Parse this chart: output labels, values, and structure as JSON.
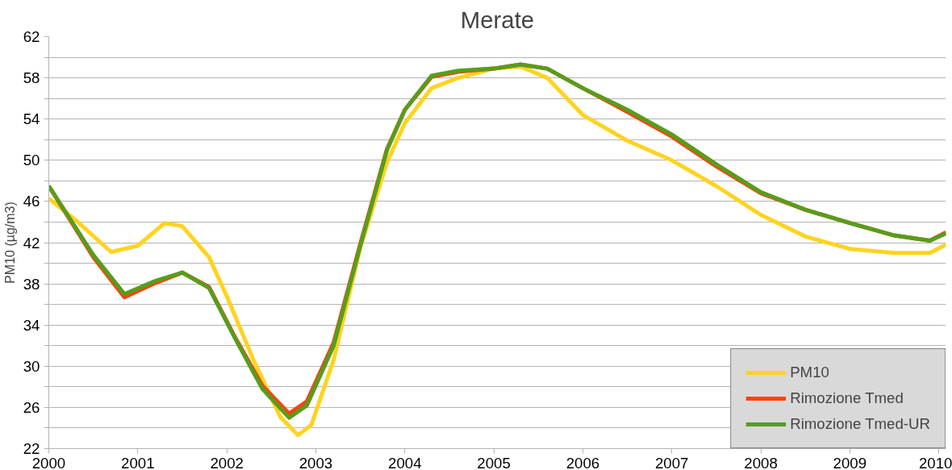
{
  "chart_data": {
    "type": "line",
    "title": "Merate",
    "ylabel": "PM10 (µg/m3)",
    "xlim": [
      2000,
      2010.08
    ],
    "xticks": [
      2000,
      2001,
      2002,
      2003,
      2004,
      2005,
      2006,
      2007,
      2008,
      2009,
      2010
    ],
    "ylim": [
      22,
      62
    ],
    "yticks": [
      22,
      {
        "value": 24,
        "label": null
      },
      26,
      {
        "value": 28,
        "label": null
      },
      30,
      {
        "value": 32,
        "label": null
      },
      34,
      {
        "value": 36,
        "label": null
      },
      38,
      {
        "value": 40,
        "label": null
      },
      42,
      {
        "value": 44,
        "label": null
      },
      46,
      {
        "value": 48,
        "label": null
      },
      50,
      {
        "value": 52,
        "label": null
      },
      54,
      {
        "value": 56,
        "label": null
      },
      58,
      {
        "value": 60,
        "label": null
      },
      62
    ],
    "grid": "y",
    "legend": "bottom right",
    "marker": "none",
    "line_style": "solid",
    "series": [
      {
        "name": "PM10",
        "color": "#ffd320",
        "x": [
          2000,
          2000.3,
          2000.7,
          2001,
          2001.3,
          2001.5,
          2001.8,
          2002,
          2002.3,
          2002.6,
          2002.8,
          2002.95,
          2003.2,
          2003.5,
          2003.8,
          2004,
          2004.3,
          2004.6,
          2005,
          2005.3,
          2005.6,
          2006,
          2006.5,
          2007,
          2007.5,
          2008,
          2008.5,
          2009,
          2009.5,
          2009.9,
          2010.08
        ],
        "values": [
          46.3,
          44.2,
          41.1,
          41.7,
          43.9,
          43.6,
          40.6,
          36.8,
          30.6,
          25.1,
          23.3,
          24.3,
          30.6,
          41.5,
          49.8,
          53.6,
          57,
          58,
          58.9,
          59.1,
          58,
          54.4,
          51.9,
          50,
          47.5,
          44.7,
          42.6,
          41.4,
          41,
          41,
          41.8
        ]
      },
      {
        "name": "Rimozione Tmed",
        "color": "#ff420e",
        "x": [
          2000,
          2000.5,
          2000.85,
          2001.2,
          2001.5,
          2001.8,
          2002.1,
          2002.4,
          2002.7,
          2002.9,
          2003.2,
          2003.5,
          2003.8,
          2004,
          2004.3,
          2004.6,
          2005,
          2005.3,
          2005.6,
          2006,
          2006.5,
          2007,
          2007.5,
          2008,
          2008.5,
          2009,
          2009.5,
          2009.9,
          2010.08
        ],
        "values": [
          47.5,
          40.6,
          36.7,
          38.1,
          39.1,
          37.7,
          32.7,
          28.1,
          25.4,
          26.6,
          32.3,
          41.9,
          51.1,
          54.9,
          58.1,
          58.6,
          58.9,
          59.3,
          58.9,
          57,
          54.7,
          52.3,
          49.4,
          46.8,
          45.2,
          43.9,
          42.7,
          42.2,
          43
        ]
      },
      {
        "name": "Rimozione Tmed-UR",
        "color": "#579d1c",
        "x": [
          2000,
          2000.5,
          2000.85,
          2001.2,
          2001.5,
          2001.8,
          2002.1,
          2002.4,
          2002.7,
          2002.9,
          2003.2,
          2003.5,
          2003.8,
          2004,
          2004.3,
          2004.6,
          2005,
          2005.3,
          2005.6,
          2006,
          2006.5,
          2007,
          2007.5,
          2008,
          2008.5,
          2009,
          2009.5,
          2009.9,
          2010.08
        ],
        "values": [
          47.5,
          40.8,
          37,
          38.3,
          39.1,
          37.6,
          32.6,
          27.8,
          25,
          26.2,
          32,
          41.7,
          51,
          54.9,
          58.2,
          58.7,
          58.9,
          59.3,
          58.9,
          57,
          54.9,
          52.5,
          49.6,
          46.9,
          45.2,
          43.9,
          42.7,
          42.2,
          42.9
        ]
      }
    ]
  }
}
